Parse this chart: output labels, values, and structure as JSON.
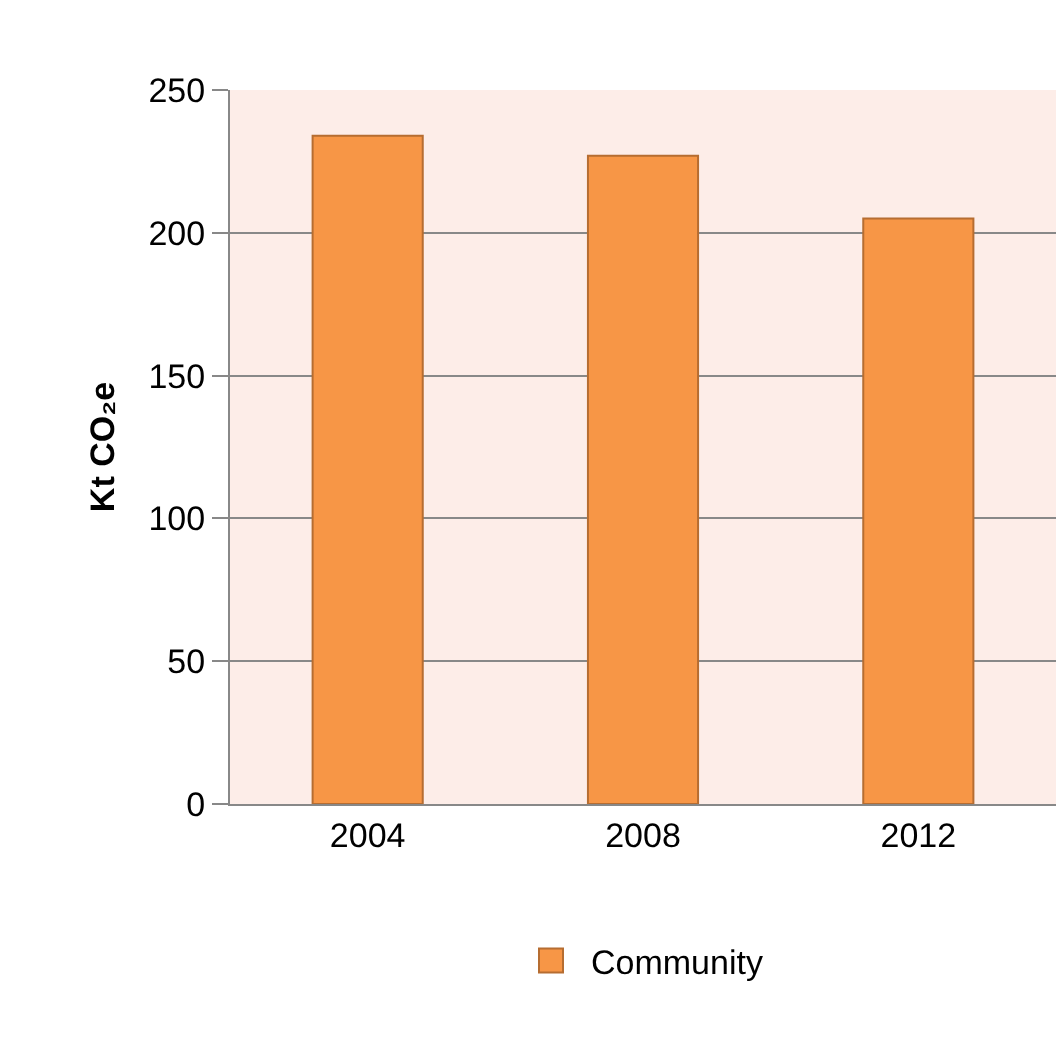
{
  "chart_data": {
    "type": "bar",
    "ylabel": "Kt CO₂e",
    "categories": [
      "2004",
      "2008",
      "2012"
    ],
    "series": [
      {
        "name": "Community",
        "color": "#f79646",
        "values": [
          234,
          227,
          205
        ]
      }
    ],
    "ylim": [
      0,
      250
    ],
    "yticks": [
      0,
      50,
      100,
      150,
      200,
      250
    ],
    "grid": "y",
    "legend": "bottom"
  }
}
